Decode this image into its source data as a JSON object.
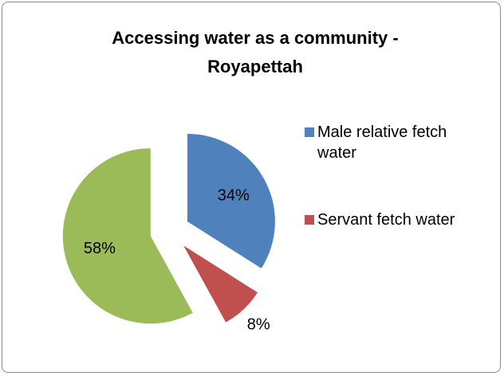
{
  "chart_data": {
    "type": "pie",
    "title": "Accessing water as a community - Royapettah",
    "categories": [
      "Male relative fetch water",
      "Servant fetch water",
      null
    ],
    "values": [
      34,
      8,
      58
    ],
    "value_labels": [
      "34%",
      "8%",
      "58%"
    ],
    "colors": [
      "#4f81bd",
      "#c0504d",
      "#9bbb59"
    ],
    "legend": "right"
  }
}
